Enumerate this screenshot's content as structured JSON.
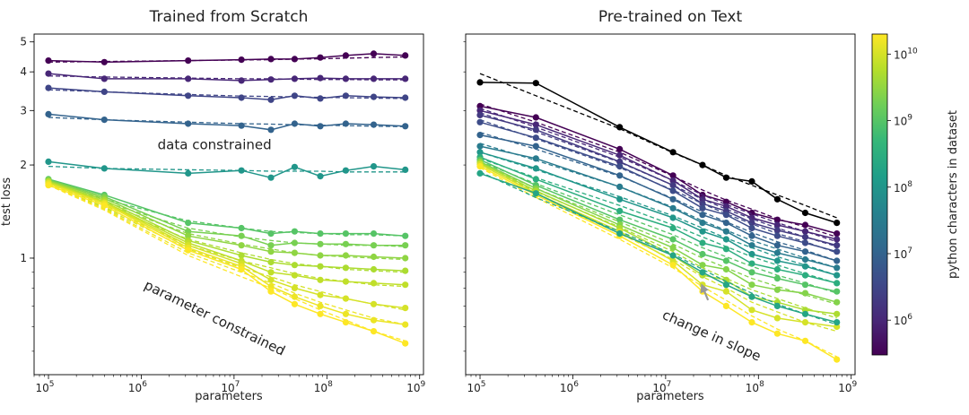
{
  "colorbar": {
    "label": "python characters in dataset",
    "ticks": [
      {
        "label": "10",
        "exp": "6",
        "value": 1000000
      },
      {
        "label": "10",
        "exp": "7",
        "value": 10000000
      },
      {
        "label": "10",
        "exp": "8",
        "value": 100000000
      },
      {
        "label": "10",
        "exp": "9",
        "value": 1000000000
      },
      {
        "label": "10",
        "exp": "10",
        "value": 10000000000
      }
    ],
    "range": [
      300000,
      20000000000
    ],
    "colormap": "viridis",
    "stops": [
      "#440154",
      "#482878",
      "#3e4989",
      "#31688e",
      "#26828e",
      "#1f9e89",
      "#35b779",
      "#6ece58",
      "#b5de2b",
      "#fde725"
    ]
  },
  "chart_data": [
    {
      "type": "line",
      "title": "Trained from Scratch",
      "xlabel": "parameters",
      "ylabel": "test loss",
      "xscale": "log",
      "yscale": "log",
      "xlim": [
        70000,
        1100000000
      ],
      "ylim": [
        0.42,
        5.3
      ],
      "xticks": [
        {
          "label": "10",
          "exp": "5",
          "value": 100000
        },
        {
          "label": "10",
          "exp": "6",
          "value": 1000000
        },
        {
          "label": "10",
          "exp": "7",
          "value": 10000000
        },
        {
          "label": "10",
          "exp": "8",
          "value": 100000000
        },
        {
          "label": "10",
          "exp": "9",
          "value": 1000000000
        }
      ],
      "yticks": [
        {
          "label": "1",
          "value": 1
        },
        {
          "label": "2",
          "value": 2
        },
        {
          "label": "3",
          "value": 3
        },
        {
          "label": "4",
          "value": 4
        },
        {
          "label": "5",
          "value": 5
        }
      ],
      "annotations": [
        {
          "text": "data constrained",
          "x": 1500000,
          "y": 2.25,
          "rotate": 0
        },
        {
          "text": "parameter constrained",
          "x": 1050000,
          "y": 0.8,
          "rotate": 26
        }
      ],
      "x": [
        100000,
        400000,
        3200000,
        12000000,
        25000000,
        45000000,
        85000000,
        160000000,
        320000000,
        700000000
      ],
      "series": [
        {
          "dataset_size": 300000,
          "values": [
            4.35,
            4.3,
            4.35,
            4.38,
            4.4,
            4.4,
            4.45,
            4.52,
            4.58,
            4.52
          ],
          "fit": [
            4.3,
            4.32,
            4.35,
            4.37,
            4.38,
            4.4,
            4.41,
            4.43,
            4.45,
            4.47
          ]
        },
        {
          "dataset_size": 1000000,
          "values": [
            3.95,
            3.8,
            3.8,
            3.75,
            3.78,
            3.8,
            3.82,
            3.8,
            3.8,
            3.8
          ],
          "fit": [
            3.88,
            3.85,
            3.82,
            3.8,
            3.8,
            3.79,
            3.78,
            3.78,
            3.77,
            3.77
          ]
        },
        {
          "dataset_size": 3000000,
          "values": [
            3.55,
            3.45,
            3.35,
            3.3,
            3.25,
            3.35,
            3.28,
            3.35,
            3.32,
            3.3
          ],
          "fit": [
            3.5,
            3.45,
            3.38,
            3.34,
            3.33,
            3.32,
            3.31,
            3.3,
            3.29,
            3.28
          ]
        },
        {
          "dataset_size": 10000000,
          "values": [
            2.92,
            2.8,
            2.72,
            2.68,
            2.6,
            2.72,
            2.67,
            2.72,
            2.7,
            2.67
          ],
          "fit": [
            2.85,
            2.8,
            2.75,
            2.72,
            2.71,
            2.7,
            2.69,
            2.68,
            2.67,
            2.66
          ]
        },
        {
          "dataset_size": 100000000,
          "values": [
            2.05,
            1.95,
            1.88,
            1.92,
            1.82,
            1.97,
            1.84,
            1.92,
            1.98,
            1.93
          ],
          "fit": [
            1.98,
            1.95,
            1.93,
            1.92,
            1.91,
            1.91,
            1.91,
            1.9,
            1.9,
            1.9
          ]
        },
        {
          "dataset_size": 1000000000,
          "values": [
            1.8,
            1.6,
            1.3,
            1.25,
            1.2,
            1.22,
            1.2,
            1.2,
            1.2,
            1.18
          ],
          "fit": [
            1.8,
            1.55,
            1.32,
            1.25,
            1.22,
            1.21,
            1.2,
            1.19,
            1.19,
            1.18
          ]
        },
        {
          "dataset_size": 2000000000,
          "values": [
            1.79,
            1.58,
            1.22,
            1.18,
            1.1,
            1.12,
            1.11,
            1.11,
            1.1,
            1.1
          ],
          "fit": [
            1.78,
            1.52,
            1.25,
            1.17,
            1.14,
            1.12,
            1.11,
            1.1,
            1.1,
            1.09
          ]
        },
        {
          "dataset_size": 3000000000,
          "values": [
            1.78,
            1.56,
            1.18,
            1.1,
            1.05,
            1.04,
            1.02,
            1.02,
            1.01,
            1.0
          ],
          "fit": [
            1.77,
            1.5,
            1.2,
            1.11,
            1.07,
            1.04,
            1.02,
            1.01,
            1.0,
            0.99
          ]
        },
        {
          "dataset_size": 5000000000,
          "values": [
            1.77,
            1.54,
            1.14,
            1.02,
            0.97,
            0.95,
            0.94,
            0.93,
            0.92,
            0.91
          ],
          "fit": [
            1.76,
            1.48,
            1.15,
            1.04,
            0.99,
            0.96,
            0.94,
            0.92,
            0.91,
            0.9
          ]
        },
        {
          "dataset_size": 7000000000,
          "values": [
            1.76,
            1.52,
            1.12,
            0.98,
            0.9,
            0.88,
            0.85,
            0.84,
            0.83,
            0.82
          ],
          "fit": [
            1.75,
            1.46,
            1.1,
            0.98,
            0.93,
            0.89,
            0.86,
            0.84,
            0.82,
            0.81
          ]
        },
        {
          "dataset_size": 10000000000,
          "values": [
            1.75,
            1.51,
            1.1,
            0.96,
            0.85,
            0.8,
            0.76,
            0.74,
            0.71,
            0.69
          ],
          "fit": [
            1.74,
            1.45,
            1.07,
            0.93,
            0.87,
            0.82,
            0.78,
            0.74,
            0.71,
            0.68
          ]
        },
        {
          "dataset_size": 15000000000,
          "values": [
            1.74,
            1.5,
            1.08,
            0.94,
            0.81,
            0.75,
            0.7,
            0.66,
            0.63,
            0.61
          ],
          "fit": [
            1.73,
            1.44,
            1.04,
            0.9,
            0.83,
            0.77,
            0.72,
            0.68,
            0.64,
            0.61
          ]
        },
        {
          "dataset_size": 20000000000,
          "values": [
            1.72,
            1.48,
            1.06,
            0.92,
            0.78,
            0.71,
            0.66,
            0.62,
            0.58,
            0.53
          ],
          "fit": [
            1.72,
            1.43,
            1.02,
            0.87,
            0.8,
            0.74,
            0.68,
            0.63,
            0.58,
            0.54
          ]
        }
      ]
    },
    {
      "type": "line",
      "title": "Pre-trained on Text",
      "xlabel": "parameters",
      "ylabel": "",
      "xscale": "log",
      "yscale": "log",
      "xlim": [
        70000,
        1100000000
      ],
      "ylim": [
        0.42,
        5.3
      ],
      "xticks": [
        {
          "label": "10",
          "exp": "5",
          "value": 100000
        },
        {
          "label": "10",
          "exp": "6",
          "value": 1000000
        },
        {
          "label": "10",
          "exp": "7",
          "value": 10000000
        },
        {
          "label": "10",
          "exp": "8",
          "value": 100000000
        },
        {
          "label": "10",
          "exp": "9",
          "value": 1000000000
        }
      ],
      "yticks": [],
      "annotations": [
        {
          "text": "change in slope",
          "x": 9000000,
          "y": 0.64,
          "rotate": 24,
          "arrow_to": [
            25000000,
            0.83
          ]
        }
      ],
      "x": [
        100000,
        400000,
        3200000,
        12000000,
        25000000,
        45000000,
        85000000,
        160000000,
        320000000,
        700000000
      ],
      "series": [
        {
          "dataset_size": 0,
          "color": "#000000",
          "values": [
            3.7,
            3.68,
            2.65,
            2.2,
            2.0,
            1.82,
            1.77,
            1.55,
            1.4,
            1.3
          ],
          "fit": [
            3.95,
            3.35,
            2.62,
            2.19,
            2.0,
            1.85,
            1.72,
            1.6,
            1.48,
            1.35
          ]
        },
        {
          "dataset_size": 300000,
          "values": [
            3.1,
            2.85,
            2.25,
            1.85,
            1.6,
            1.52,
            1.4,
            1.33,
            1.28,
            1.2
          ],
          "fit": [
            3.15,
            2.75,
            2.2,
            1.84,
            1.66,
            1.54,
            1.44,
            1.34,
            1.26,
            1.17
          ]
        },
        {
          "dataset_size": 1000000,
          "values": [
            3.0,
            2.7,
            2.15,
            1.78,
            1.55,
            1.47,
            1.35,
            1.28,
            1.22,
            1.15
          ],
          "fit": [
            3.05,
            2.65,
            2.12,
            1.78,
            1.6,
            1.49,
            1.39,
            1.3,
            1.22,
            1.13
          ]
        },
        {
          "dataset_size": 2000000,
          "values": [
            2.9,
            2.6,
            2.05,
            1.72,
            1.5,
            1.42,
            1.3,
            1.23,
            1.17,
            1.1
          ],
          "fit": [
            2.95,
            2.56,
            2.04,
            1.72,
            1.55,
            1.44,
            1.34,
            1.25,
            1.17,
            1.09
          ]
        },
        {
          "dataset_size": 4000000,
          "values": [
            2.75,
            2.45,
            1.98,
            1.65,
            1.45,
            1.38,
            1.25,
            1.18,
            1.12,
            1.05
          ],
          "fit": [
            2.8,
            2.43,
            1.96,
            1.66,
            1.5,
            1.39,
            1.29,
            1.2,
            1.13,
            1.04
          ]
        },
        {
          "dataset_size": 10000000,
          "values": [
            2.5,
            2.3,
            1.85,
            1.55,
            1.38,
            1.3,
            1.18,
            1.1,
            1.05,
            0.98
          ],
          "fit": [
            2.55,
            2.25,
            1.84,
            1.56,
            1.41,
            1.31,
            1.21,
            1.13,
            1.06,
            0.98
          ]
        },
        {
          "dataset_size": 30000000,
          "values": [
            2.3,
            2.1,
            1.7,
            1.45,
            1.3,
            1.22,
            1.1,
            1.04,
            0.99,
            0.93
          ],
          "fit": [
            2.35,
            2.07,
            1.7,
            1.46,
            1.32,
            1.23,
            1.14,
            1.07,
            1.0,
            0.93
          ]
        },
        {
          "dataset_size": 100000000,
          "values": [
            2.2,
            1.95,
            1.55,
            1.35,
            1.22,
            1.15,
            1.03,
            0.98,
            0.94,
            0.88
          ],
          "fit": [
            2.2,
            1.93,
            1.58,
            1.37,
            1.25,
            1.16,
            1.08,
            1.01,
            0.95,
            0.88
          ]
        },
        {
          "dataset_size": 300000000,
          "values": [
            2.12,
            1.8,
            1.42,
            1.25,
            1.12,
            1.07,
            0.96,
            0.92,
            0.88,
            0.83
          ],
          "fit": [
            2.1,
            1.82,
            1.48,
            1.28,
            1.17,
            1.09,
            1.01,
            0.95,
            0.89,
            0.83
          ]
        },
        {
          "dataset_size": 1000000000,
          "values": [
            2.08,
            1.72,
            1.33,
            1.15,
            1.03,
            0.98,
            0.9,
            0.86,
            0.82,
            0.78
          ],
          "fit": [
            2.05,
            1.74,
            1.38,
            1.19,
            1.08,
            1.01,
            0.94,
            0.88,
            0.83,
            0.77
          ]
        },
        {
          "dataset_size": 2500000000,
          "values": [
            2.05,
            1.68,
            1.28,
            1.08,
            0.95,
            0.92,
            0.82,
            0.79,
            0.77,
            0.72
          ],
          "fit": [
            2.02,
            1.68,
            1.31,
            1.11,
            1.0,
            0.93,
            0.86,
            0.81,
            0.76,
            0.71
          ]
        },
        {
          "dataset_size": 5000000000,
          "values": [
            2.03,
            1.65,
            1.25,
            1.02,
            0.88,
            0.85,
            0.75,
            0.72,
            0.68,
            0.66
          ],
          "fit": [
            2.0,
            1.64,
            1.26,
            1.05,
            0.93,
            0.86,
            0.79,
            0.74,
            0.69,
            0.64
          ]
        },
        {
          "dataset_size": 10000000000,
          "values": [
            2.01,
            1.62,
            1.22,
            0.98,
            0.82,
            0.78,
            0.68,
            0.64,
            0.62,
            0.6
          ],
          "fit": [
            1.98,
            1.6,
            1.2,
            0.99,
            0.87,
            0.8,
            0.72,
            0.67,
            0.62,
            0.58
          ]
        },
        {
          "dataset_size": 20000000000,
          "values": [
            1.98,
            1.6,
            1.18,
            0.95,
            0.78,
            0.7,
            0.62,
            0.57,
            0.54,
            0.47
          ],
          "fit": [
            1.96,
            1.57,
            1.15,
            0.93,
            0.81,
            0.73,
            0.65,
            0.59,
            0.54,
            0.48
          ]
        },
        {
          "dataset_size": 200000000,
          "values": [
            1.88,
            1.62,
            1.2,
            1.02,
            0.9,
            0.82,
            0.75,
            0.7,
            0.66,
            0.62
          ],
          "fit": [
            1.9,
            1.57,
            1.22,
            1.03,
            0.92,
            0.84,
            0.77,
            0.71,
            0.66,
            0.61
          ]
        }
      ]
    }
  ]
}
